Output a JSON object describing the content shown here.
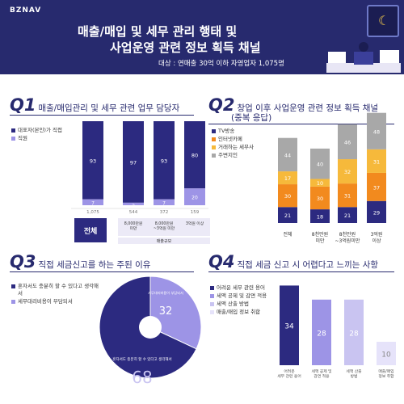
{
  "header": {
    "brand": "BZNAV",
    "title_line1": "매출/매입 및 세무 관리 행태 및",
    "title_line2": "사업운영 관련 정보 획득 채널",
    "subtitle": "대상 : 연매출 30억 이하 자영업자 1,075명",
    "moon_icon": "crescent-moon-icon"
  },
  "colors": {
    "navy": "#2c2a80",
    "lavender": "#9d94e6",
    "orange": "#f28a1e",
    "yellow": "#f6b93b",
    "gray": "#a8a8a8",
    "light": "#c9c4f1",
    "pale": "#e6e3fa"
  },
  "q1": {
    "num": "Q1",
    "title": "매출/매입관리 및 세무 관련 업무 담당자"
  },
  "q2": {
    "num": "Q2",
    "title": "창업 이후 사업운영 관련 정보 획득 채널",
    "title2": "(중복 응답)"
  },
  "q3": {
    "num": "Q3",
    "title": "직접 세금신고를 하는 주된 이유"
  },
  "q4": {
    "num": "Q4",
    "title": "직접 세금 신고 시 어렵다고 느끼는 사항"
  },
  "chart_data": [
    {
      "type": "bar",
      "stacked": true,
      "legend": [
        "대표자(본인)가 직접",
        "직원"
      ],
      "categories": [
        "전체",
        "8,000만원\n미만",
        "8,000만원\n~3억원 미만",
        "3억원 이상"
      ],
      "counts": [
        "1,075",
        "544",
        "372",
        "159"
      ],
      "group_label": "전체",
      "axis_group": "매출규모",
      "series": [
        {
          "name": "대표자(본인)가 직접",
          "values": [
            93,
            97,
            93,
            80
          ]
        },
        {
          "name": "직원",
          "values": [
            7,
            3,
            7,
            20
          ]
        }
      ],
      "ylim": [
        0,
        100
      ]
    },
    {
      "type": "bar",
      "stacked": true,
      "legend": [
        "TV방송",
        "인터넷카페",
        "거래하는 세무사",
        "주변지인"
      ],
      "categories": [
        "전체",
        "8천만원\n미만",
        "8천만원\n~3억원미만",
        "3억원\n이상"
      ],
      "series": [
        {
          "name": "TV방송",
          "values": [
            21,
            18,
            21,
            29
          ]
        },
        {
          "name": "인터넷카페",
          "values": [
            30,
            30,
            31,
            37
          ]
        },
        {
          "name": "거래하는 세무사",
          "values": [
            17,
            10,
            32,
            31
          ]
        },
        {
          "name": "주변지인",
          "values": [
            44,
            40,
            46,
            48
          ]
        }
      ]
    },
    {
      "type": "pie",
      "legend": [
        "혼자서도 충분히 할 수 있다고 생각해서",
        "세무대리비용이 부담되서"
      ],
      "labels": [
        "혼자서도 충분히 할 수 있다고 생각해서",
        "세무대리비용이 부담되서"
      ],
      "values": [
        68,
        32
      ]
    },
    {
      "type": "bar",
      "legend": [
        "어려운 세무 관련 용어",
        "세액 공제 및 감면 적용",
        "세액 산출 방법",
        "매출/매입 정보 취합"
      ],
      "categories": [
        "어려운\n세무 관련 용어",
        "세액 공제 및\n감면 적용",
        "세액 산출\n방법",
        "매출/매입\n정보 취합"
      ],
      "values": [
        34,
        28,
        28,
        10
      ]
    }
  ]
}
